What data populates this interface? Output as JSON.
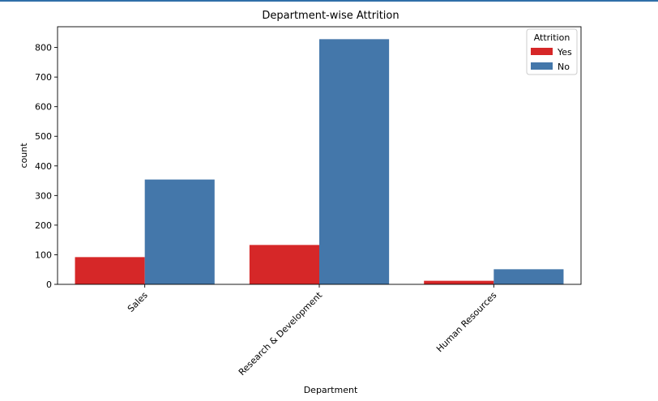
{
  "chart_data": {
    "type": "bar",
    "title": "Department-wise Attrition",
    "xlabel": "Department",
    "ylabel": "count",
    "categories": [
      "Sales",
      "Research & Development",
      "Human Resources"
    ],
    "series": [
      {
        "name": "Yes",
        "color": "#d62728",
        "values": [
          92,
          133,
          12
        ]
      },
      {
        "name": "No",
        "color": "#4477aa",
        "values": [
          354,
          828,
          51
        ]
      }
    ],
    "ylim": [
      0,
      870
    ],
    "yticks": [
      0,
      100,
      200,
      300,
      400,
      500,
      600,
      700,
      800
    ],
    "legend": {
      "title": "Attrition",
      "position": "top-right"
    },
    "grid": false
  }
}
